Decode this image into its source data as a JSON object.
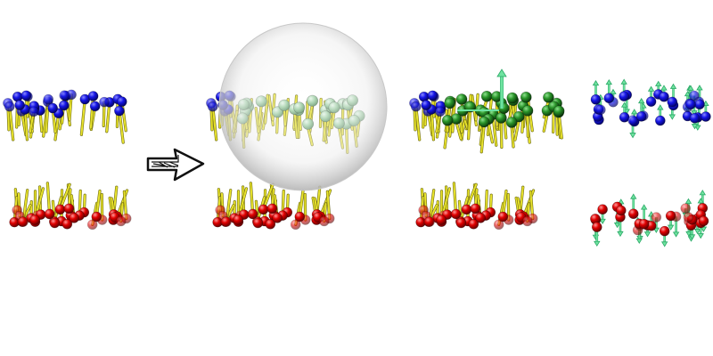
{
  "figure": {
    "panels": [
      {
        "name": "membrane-initial",
        "molecules": [
          "lipid-tail",
          "blue-head",
          "red-head"
        ]
      },
      {
        "name": "membrane-with-sphere",
        "molecules": [
          "lipid-tail",
          "blue-head",
          "red-head",
          "green-bead",
          "sphere"
        ]
      },
      {
        "name": "membrane-green-layer",
        "molecules": [
          "lipid-tail",
          "blue-head",
          "red-head",
          "green-bead",
          "force-arrow"
        ]
      },
      {
        "name": "membrane-force-vectors",
        "molecules": [
          "blue-head",
          "red-head",
          "force-arrow"
        ]
      }
    ],
    "colors": {
      "tail": "#e8e32c",
      "tail_dark": "#6d6a10",
      "blue_head": "#1010e0",
      "red_head": "#d80000",
      "green_bead": "#1e8a1e",
      "pale_green": "#8fc99a",
      "arrow": "#6fe3a0",
      "sphere_light": "#ffffff",
      "sphere_dark": "#b9b9b9"
    },
    "icons": [
      "right-arrow-icon"
    ]
  }
}
